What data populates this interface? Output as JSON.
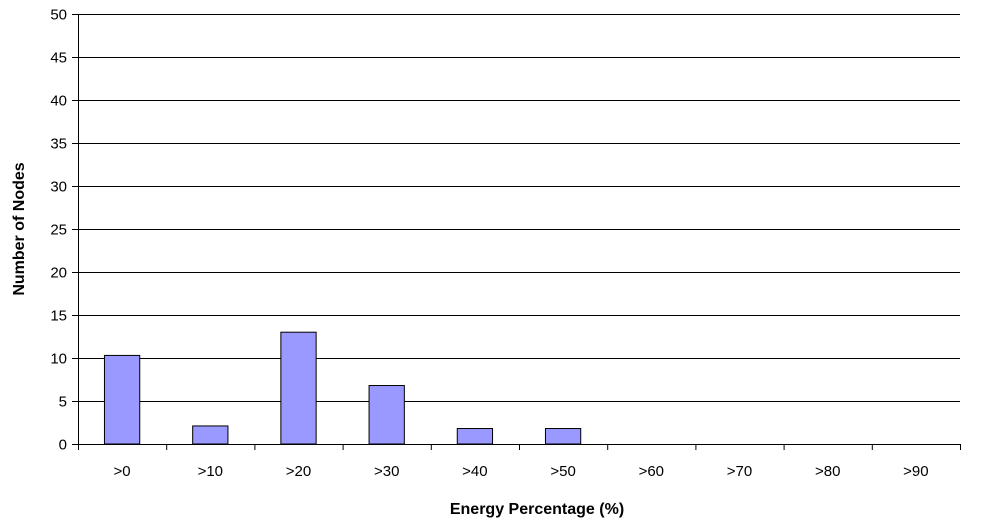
{
  "chart_data": {
    "type": "bar",
    "categories": [
      ">0",
      ">10",
      ">20",
      ">30",
      ">40",
      ">50",
      ">60",
      ">70",
      ">80",
      ">90"
    ],
    "values": [
      10.3,
      2.1,
      13,
      6.8,
      1.8,
      1.8,
      0,
      0,
      0,
      0
    ],
    "xlabel": "Energy Percentage (%)",
    "ylabel": "Number of Nodes",
    "ylim": [
      0,
      50
    ],
    "yticks": [
      0,
      5,
      10,
      15,
      20,
      25,
      30,
      35,
      40,
      45,
      50
    ],
    "grid": true,
    "legend": "none",
    "colors": {
      "bar_fill": "#9999ff",
      "bar_stroke": "#000000",
      "grid": "#000000",
      "axis": "#000000"
    }
  }
}
